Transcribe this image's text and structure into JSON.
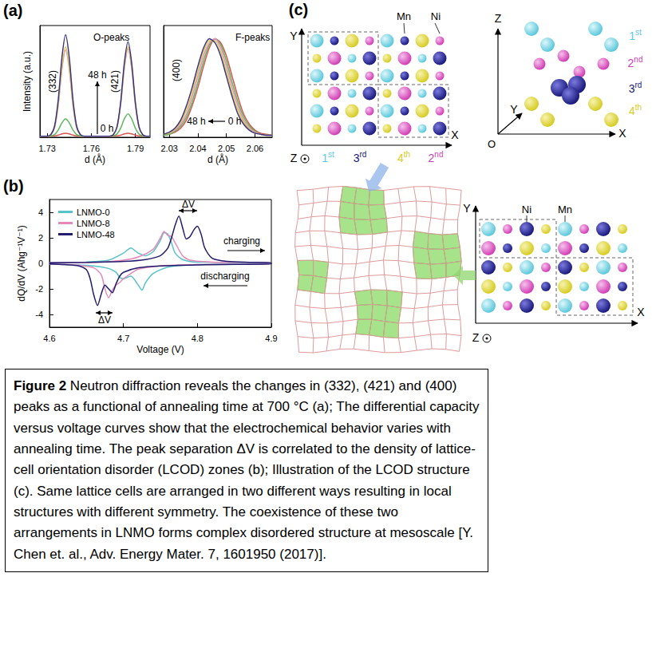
{
  "panel_labels": [
    "(a)",
    "(b)",
    "(c)"
  ],
  "chart_data": [
    {
      "type": "line",
      "title": "O-peaks",
      "xlabel": "d (Å)",
      "ylabel": "Intensity (a.u.)",
      "xlim": [
        1.725,
        1.8
      ],
      "xticks": [
        1.73,
        1.76,
        1.79
      ],
      "ylim": [
        0,
        1.1
      ],
      "tick_labels": "x",
      "grid": false,
      "x": [
        1.725,
        1.7275,
        1.73,
        1.7325,
        1.735,
        1.7375,
        1.74,
        1.7425,
        1.745,
        1.7475,
        1.75,
        1.7525,
        1.755,
        1.7575,
        1.76,
        1.7625,
        1.765,
        1.7675,
        1.77,
        1.7725,
        1.775,
        1.7775,
        1.78,
        1.7825,
        1.785,
        1.7875,
        1.79,
        1.7925,
        1.795,
        1.7975,
        1.8
      ],
      "series": [
        {
          "color": "#d9534f",
          "values": [
            0.01,
            0.01,
            0.01,
            0.011,
            0.013,
            0.021,
            0.033,
            0.04,
            0.033,
            0.021,
            0.013,
            0.011,
            0.01,
            0.01,
            0.01,
            0.01,
            0.01,
            0.01,
            0.01,
            0.01,
            0.011,
            0.013,
            0.021,
            0.033,
            0.04,
            0.033,
            0.021,
            0.013,
            0.011,
            0.01,
            0.01
          ]
        },
        {
          "color": "#5cb85c",
          "values": [
            0.01,
            0.01,
            0.01,
            0.013,
            0.027,
            0.071,
            0.142,
            0.18,
            0.142,
            0.071,
            0.027,
            0.013,
            0.01,
            0.01,
            0.01,
            0.01,
            0.01,
            0.01,
            0.01,
            0.01,
            0.014,
            0.032,
            0.089,
            0.181,
            0.23,
            0.181,
            0.089,
            0.032,
            0.014,
            0.01,
            0.01
          ]
        },
        {
          "color": "#e88bc4",
          "values": [
            0.01,
            0.01,
            0.01,
            0.024,
            0.095,
            0.316,
            0.669,
            0.86,
            0.669,
            0.316,
            0.095,
            0.024,
            0.01,
            0.01,
            0.01,
            0.01,
            0.01,
            0.01,
            0.01,
            0.01,
            0.025,
            0.096,
            0.32,
            0.677,
            0.87,
            0.677,
            0.32,
            0.096,
            0.025,
            0.01,
            0.01
          ]
        },
        {
          "color": "#d8c84a",
          "values": [
            0.01,
            0.01,
            0.01,
            0.025,
            0.098,
            0.327,
            0.692,
            0.89,
            0.692,
            0.327,
            0.098,
            0.025,
            0.01,
            0.01,
            0.01,
            0.01,
            0.01,
            0.01,
            0.01,
            0.01,
            0.025,
            0.098,
            0.327,
            0.692,
            0.89,
            0.692,
            0.327,
            0.098,
            0.025,
            0.01,
            0.01
          ]
        },
        {
          "color": "#3b3486",
          "values": [
            0.01,
            0.01,
            0.01,
            0.027,
            0.11,
            0.37,
            0.785,
            1.01,
            0.785,
            0.37,
            0.11,
            0.027,
            0.01,
            0.01,
            0.01,
            0.01,
            0.01,
            0.01,
            0.01,
            0.01,
            0.026,
            0.103,
            0.345,
            0.731,
            0.94,
            0.731,
            0.345,
            0.103,
            0.026,
            0.01,
            0.01
          ]
        }
      ],
      "annotations": [
        "(332)",
        "(421)",
        "48 h",
        "0 h"
      ]
    },
    {
      "type": "line",
      "title": "F-peaks",
      "xlabel": "d (Å)",
      "xlim": [
        2.028,
        2.066
      ],
      "xticks": [
        2.03,
        2.04,
        2.05,
        2.06
      ],
      "ylim": [
        0,
        1.1
      ],
      "tick_labels": "x",
      "grid": false,
      "x": [
        2.028,
        2.03,
        2.032,
        2.034,
        2.036,
        2.038,
        2.04,
        2.042,
        2.044,
        2.046,
        2.048,
        2.05,
        2.052,
        2.054,
        2.056,
        2.058,
        2.06,
        2.062,
        2.064,
        2.066
      ],
      "series": [
        {
          "color": "#d9534f",
          "values": [
            0.02,
            0.03,
            0.05,
            0.09,
            0.17,
            0.31,
            0.49,
            0.7,
            0.88,
            0.97,
            0.93,
            0.8,
            0.6,
            0.4,
            0.23,
            0.13,
            0.07,
            0.04,
            0.03,
            0.02
          ]
        },
        {
          "color": "#5cb85c",
          "values": [
            0.02,
            0.03,
            0.06,
            0.11,
            0.2,
            0.35,
            0.54,
            0.75,
            0.91,
            0.97,
            0.91,
            0.75,
            0.54,
            0.35,
            0.2,
            0.11,
            0.06,
            0.03,
            0.02,
            0.02
          ]
        },
        {
          "color": "#e88bc4",
          "values": [
            0.03,
            0.04,
            0.07,
            0.13,
            0.23,
            0.4,
            0.6,
            0.8,
            0.93,
            0.97,
            0.88,
            0.7,
            0.49,
            0.31,
            0.17,
            0.09,
            0.05,
            0.03,
            0.02,
            0.02
          ]
        },
        {
          "color": "#d8c84a",
          "values": [
            0.03,
            0.04,
            0.08,
            0.15,
            0.27,
            0.44,
            0.65,
            0.84,
            0.95,
            0.95,
            0.84,
            0.65,
            0.44,
            0.27,
            0.15,
            0.08,
            0.04,
            0.03,
            0.02,
            0.02
          ]
        },
        {
          "color": "#3b3486",
          "values": [
            0.03,
            0.05,
            0.09,
            0.17,
            0.31,
            0.49,
            0.7,
            0.88,
            0.97,
            0.93,
            0.8,
            0.6,
            0.4,
            0.23,
            0.13,
            0.07,
            0.04,
            0.03,
            0.02,
            0.02
          ]
        }
      ],
      "annotations": [
        "(400)",
        "48 h",
        "0 h"
      ]
    },
    {
      "type": "line",
      "xlabel": "Voltage (V)",
      "ylabel": "dQ/dV (Ahg⁻¹V⁻¹)",
      "xlim": [
        4.6,
        4.9
      ],
      "xticks": [
        4.6,
        4.7,
        4.8,
        4.9
      ],
      "ylim": [
        -5,
        5
      ],
      "yticks": [
        -4,
        -2,
        0,
        2,
        4
      ],
      "grid": false,
      "legend": "upper left",
      "series": [
        {
          "name": "LNMO-0",
          "color": "#55c3c8",
          "x": [
            4.6,
            4.65,
            4.68,
            4.7,
            4.71,
            4.72,
            4.73,
            4.74,
            4.75,
            4.755,
            4.76,
            4.765,
            4.77,
            4.78,
            4.8,
            4.9,
            4.9,
            4.8,
            4.76,
            4.74,
            4.73,
            4.725,
            4.72,
            4.71,
            4.7,
            4.695,
            4.69,
            4.68,
            4.66,
            4.6
          ],
          "values": [
            0.05,
            0.1,
            0.25,
            0.8,
            1.2,
            0.8,
            0.6,
            0.9,
            1.8,
            2.4,
            2.3,
            1.6,
            0.8,
            0.3,
            0.1,
            0.05,
            -0.05,
            -0.1,
            -0.3,
            -0.8,
            -1.5,
            -2.1,
            -1.7,
            -1.0,
            -1.2,
            -1.1,
            -0.7,
            -0.4,
            -0.2,
            -0.05
          ]
        },
        {
          "name": "LNMO-8",
          "color": "#e58ab8",
          "x": [
            4.6,
            4.67,
            4.7,
            4.72,
            4.74,
            4.75,
            4.755,
            4.76,
            4.765,
            4.77,
            4.78,
            4.79,
            4.82,
            4.9,
            4.9,
            4.8,
            4.75,
            4.72,
            4.71,
            4.7,
            4.695,
            4.69,
            4.685,
            4.68,
            4.675,
            4.67,
            4.66,
            4.64,
            4.6
          ],
          "values": [
            0.05,
            0.1,
            0.25,
            0.5,
            1.1,
            2.0,
            2.5,
            2.2,
            2.1,
            1.6,
            0.6,
            0.25,
            0.1,
            0.05,
            -0.05,
            -0.1,
            -0.2,
            -0.45,
            -0.8,
            -1.2,
            -1.5,
            -1.7,
            -2.1,
            -2.7,
            -2.0,
            -0.9,
            -0.35,
            -0.15,
            -0.05
          ]
        },
        {
          "name": "LNMO-48",
          "color": "#231c70",
          "x": [
            4.6,
            4.65,
            4.7,
            4.73,
            4.75,
            4.76,
            4.765,
            4.77,
            4.775,
            4.78,
            4.785,
            4.79,
            4.795,
            4.8,
            4.805,
            4.81,
            4.82,
            4.84,
            4.87,
            4.9,
            4.9,
            4.85,
            4.8,
            4.75,
            4.72,
            4.7,
            4.695,
            4.69,
            4.685,
            4.68,
            4.675,
            4.67,
            4.665,
            4.66,
            4.655,
            4.65,
            4.64,
            4.62,
            4.6
          ],
          "values": [
            0.05,
            0.08,
            0.15,
            0.3,
            0.6,
            1.2,
            2.0,
            3.0,
            3.7,
            2.8,
            1.9,
            2.1,
            2.6,
            2.9,
            2.3,
            1.2,
            0.4,
            0.15,
            0.08,
            0.05,
            -0.05,
            -0.08,
            -0.12,
            -0.2,
            -0.35,
            -0.7,
            -1.0,
            -1.6,
            -2.3,
            -2.0,
            -1.7,
            -2.4,
            -3.3,
            -2.5,
            -1.2,
            -0.5,
            -0.2,
            -0.1,
            -0.05
          ]
        }
      ],
      "annotations": [
        "ΔV",
        "ΔV",
        "charging",
        "discharging"
      ]
    }
  ],
  "diagram": {
    "upper_left": {
      "axes": [
        "Y",
        "X"
      ],
      "view": "Z",
      "atoms": [
        "Mn",
        "Ni"
      ],
      "layers": [
        "1st",
        "3rd",
        "4th",
        "2nd"
      ]
    },
    "upper_right": {
      "axes": [
        "Z",
        "Y",
        "X"
      ],
      "origin": "O",
      "layers": [
        "1st",
        "2nd",
        "3rd",
        "4th"
      ]
    },
    "lower_right": {
      "axes": [
        "Y",
        "X"
      ],
      "view": "Z",
      "atoms": [
        "Ni",
        "Mn"
      ]
    }
  },
  "caption": {
    "label": "Figure 2",
    "text": "Neutron diffraction reveals the changes in (332), (421) and (400) peaks as a functional of annealing time at 700 °C (a); The differential capacity versus voltage curves show that the electrochemical behavior varies with annealing time. The peak separation ΔV is correlated to the density of lattice-cell orientation disorder (LCOD) zones (b); Illustration of the LCOD structure (c). Same lattice cells are arranged in two different ways resulting in local structures with different symmetry. The coexistence of these two arrangements in LNMO forms complex disordered structure at mesoscale [Y. Chen et. al., Adv. Energy Mater. 7, 1601950 (2017)]."
  }
}
